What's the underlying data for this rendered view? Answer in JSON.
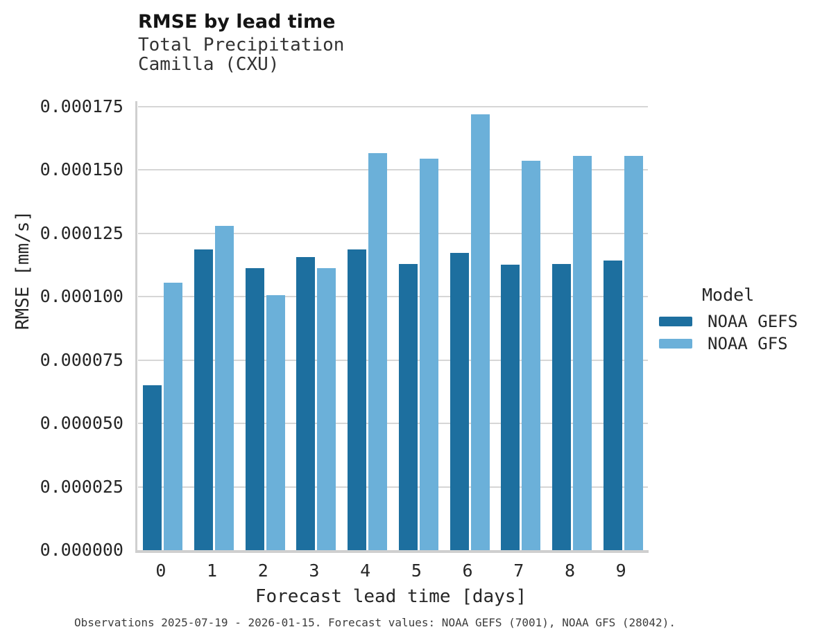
{
  "header": {
    "title": "RMSE by lead time",
    "subtitle_line1": "Total Precipitation",
    "subtitle_line2": "Camilla (CXU)"
  },
  "legend": {
    "title": "Model",
    "items": [
      {
        "label": "NOAA GEFS",
        "color": "#1d6f9f"
      },
      {
        "label": "NOAA GFS",
        "color": "#6bb0d9"
      }
    ]
  },
  "caption": "Observations 2025-07-19 - 2026-01-15. Forecast values: NOAA GEFS (7001), NOAA GFS (28042).",
  "chart_data": {
    "type": "bar",
    "title": "RMSE by lead time",
    "subtitle": [
      "Total Precipitation",
      "Camilla (CXU)"
    ],
    "xlabel": "Forecast lead time [days]",
    "ylabel": "RMSE [mm/s]",
    "categories": [
      "0",
      "1",
      "2",
      "3",
      "4",
      "5",
      "6",
      "7",
      "8",
      "9"
    ],
    "series": [
      {
        "name": "NOAA GEFS",
        "color": "#1d6f9f",
        "values": [
          6.5e-05,
          0.0001186,
          0.0001113,
          0.0001156,
          0.0001186,
          0.0001129,
          0.0001173,
          0.0001127,
          0.000113,
          0.0001144
        ]
      },
      {
        "name": "NOAA GFS",
        "color": "#6bb0d9",
        "values": [
          0.0001056,
          0.000128,
          0.0001007,
          0.0001114,
          0.0001567,
          0.0001546,
          0.0001721,
          0.0001538,
          0.0001556,
          0.0001555
        ]
      }
    ],
    "ylim": [
      0,
      0.0001772
    ],
    "yticks": [
      0.0,
      2.5e-05,
      5e-05,
      7.5e-05,
      0.0001,
      0.000125,
      0.00015,
      0.000175
    ],
    "ytick_labels": [
      "0.000000",
      "0.000025",
      "0.000050",
      "0.000075",
      "0.000100",
      "0.000125",
      "0.000150",
      "0.000175"
    ],
    "grid": true,
    "legend_title": "Model",
    "legend_position": "right"
  }
}
